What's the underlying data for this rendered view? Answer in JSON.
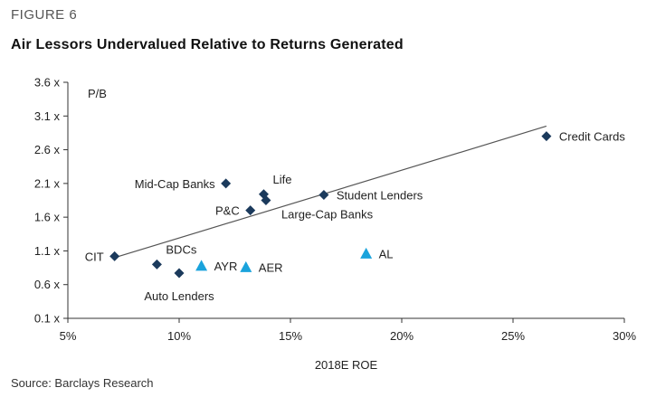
{
  "figure_label": "FIGURE 6",
  "source": "Source: Barclays Research",
  "chart_data": {
    "type": "scatter",
    "title": "Air Lessors Undervalued Relative to Returns Generated",
    "xlabel": "2018E ROE",
    "ylabel": "P/B",
    "xlim": [
      5,
      30
    ],
    "ylim": [
      0.1,
      3.6
    ],
    "x_ticks": [
      {
        "value": 5,
        "label": "5%"
      },
      {
        "value": 10,
        "label": "10%"
      },
      {
        "value": 15,
        "label": "15%"
      },
      {
        "value": 20,
        "label": "20%"
      },
      {
        "value": 25,
        "label": "25%"
      },
      {
        "value": 30,
        "label": "30%"
      }
    ],
    "y_ticks": [
      {
        "value": 0.1,
        "label": "0.1 x"
      },
      {
        "value": 0.6,
        "label": "0.6 x"
      },
      {
        "value": 1.1,
        "label": "1.1 x"
      },
      {
        "value": 1.6,
        "label": "1.6 x"
      },
      {
        "value": 2.1,
        "label": "2.1 x"
      },
      {
        "value": 2.6,
        "label": "2.6 x"
      },
      {
        "value": 3.1,
        "label": "3.1 x"
      },
      {
        "value": 3.6,
        "label": "3.6 x"
      }
    ],
    "grid": false,
    "colors": {
      "diamond": "#1b3a5c",
      "triangle": "#1aa3dc",
      "trendline": "#555555",
      "axis": "#333333"
    },
    "trendline": {
      "x": [
        7.1,
        26.5
      ],
      "y": [
        1.0,
        2.95
      ]
    },
    "points": [
      {
        "label": "Credit Cards",
        "x": 26.5,
        "y": 2.8,
        "marker": "diamond",
        "label_pos": "right"
      },
      {
        "label": "Mid-Cap Banks",
        "x": 12.1,
        "y": 2.1,
        "marker": "diamond",
        "label_pos": "left"
      },
      {
        "label": "Life",
        "x": 13.8,
        "y": 1.94,
        "marker": "diamond",
        "label_pos": "above-right"
      },
      {
        "label": "Student Lenders",
        "x": 16.5,
        "y": 1.93,
        "marker": "diamond",
        "label_pos": "right"
      },
      {
        "label": "Large-Cap Banks",
        "x": 13.9,
        "y": 1.85,
        "marker": "diamond",
        "label_pos": "below-right"
      },
      {
        "label": "P&C",
        "x": 13.2,
        "y": 1.7,
        "marker": "diamond",
        "label_pos": "left"
      },
      {
        "label": "CIT",
        "x": 7.1,
        "y": 1.02,
        "marker": "diamond",
        "label_pos": "left"
      },
      {
        "label": "BDCs",
        "x": 9.0,
        "y": 0.9,
        "marker": "diamond",
        "label_pos": "above-right"
      },
      {
        "label": "Auto Lenders",
        "x": 10.0,
        "y": 0.77,
        "marker": "diamond",
        "label_pos": "below"
      },
      {
        "label": "AYR",
        "x": 11.0,
        "y": 0.88,
        "marker": "triangle",
        "label_pos": "right"
      },
      {
        "label": "AER",
        "x": 13.0,
        "y": 0.86,
        "marker": "triangle",
        "label_pos": "right"
      },
      {
        "label": "AL",
        "x": 18.4,
        "y": 1.06,
        "marker": "triangle",
        "label_pos": "right"
      }
    ]
  }
}
